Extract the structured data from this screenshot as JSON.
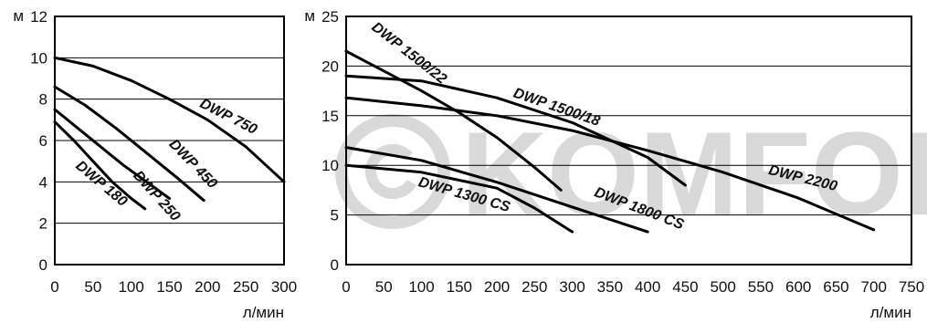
{
  "watermark": {
    "text": "KOMFOR"
  },
  "chart_data": [
    {
      "type": "line",
      "xlabel": "л/мин",
      "ylabel": "м",
      "xlim": [
        0,
        300
      ],
      "ylim": [
        0,
        12
      ],
      "x_ticks": [
        0,
        50,
        100,
        150,
        200,
        250,
        300
      ],
      "y_ticks": [
        0,
        2,
        4,
        6,
        8,
        10,
        12
      ],
      "grid": true,
      "series": [
        {
          "name": "DWP 180",
          "x": [
            0,
            25,
            50,
            75,
            100,
            118
          ],
          "y": [
            6.9,
            6.0,
            5.0,
            4.0,
            3.2,
            2.7
          ]
        },
        {
          "name": "DWP 250",
          "x": [
            0,
            30,
            60,
            90,
            120,
            150
          ],
          "y": [
            7.5,
            6.6,
            5.7,
            4.8,
            4.0,
            3.2
          ]
        },
        {
          "name": "DWP 450",
          "x": [
            0,
            40,
            80,
            120,
            160,
            195
          ],
          "y": [
            8.6,
            7.7,
            6.6,
            5.4,
            4.2,
            3.1
          ]
        },
        {
          "name": "DWP 750",
          "x": [
            0,
            50,
            100,
            150,
            200,
            250,
            300
          ],
          "y": [
            10.0,
            9.6,
            8.9,
            8.0,
            7.0,
            5.7,
            4.0
          ]
        }
      ]
    },
    {
      "type": "line",
      "xlabel": "л/мин",
      "ylabel": "м",
      "xlim": [
        0,
        750
      ],
      "ylim": [
        0,
        25
      ],
      "x_ticks": [
        0,
        50,
        100,
        150,
        200,
        250,
        300,
        350,
        400,
        450,
        500,
        550,
        600,
        650,
        700,
        750
      ],
      "y_ticks": [
        0,
        5,
        10,
        15,
        20,
        25
      ],
      "grid": true,
      "series": [
        {
          "name": "DWP 1500/22",
          "x": [
            0,
            50,
            100,
            150,
            200,
            250,
            285
          ],
          "y": [
            21.5,
            19.5,
            17.5,
            15.3,
            12.8,
            9.8,
            7.5
          ]
        },
        {
          "name": "DWP 1500/18",
          "x": [
            0,
            100,
            200,
            300,
            400,
            450
          ],
          "y": [
            19.0,
            18.5,
            16.8,
            14.3,
            10.8,
            8.0
          ]
        },
        {
          "name": "DWP 2200",
          "x": [
            0,
            100,
            200,
            300,
            400,
            500,
            600,
            700
          ],
          "y": [
            16.8,
            16.0,
            15.0,
            13.5,
            11.5,
            9.3,
            6.7,
            3.5
          ]
        },
        {
          "name": "DWP 1800 CS",
          "x": [
            0,
            100,
            200,
            300,
            400
          ],
          "y": [
            11.8,
            10.5,
            8.3,
            5.8,
            3.3
          ]
        },
        {
          "name": "DWP 1300 CS",
          "x": [
            0,
            100,
            200,
            250,
            300
          ],
          "y": [
            10.0,
            9.3,
            7.7,
            5.7,
            3.3
          ]
        }
      ]
    }
  ]
}
